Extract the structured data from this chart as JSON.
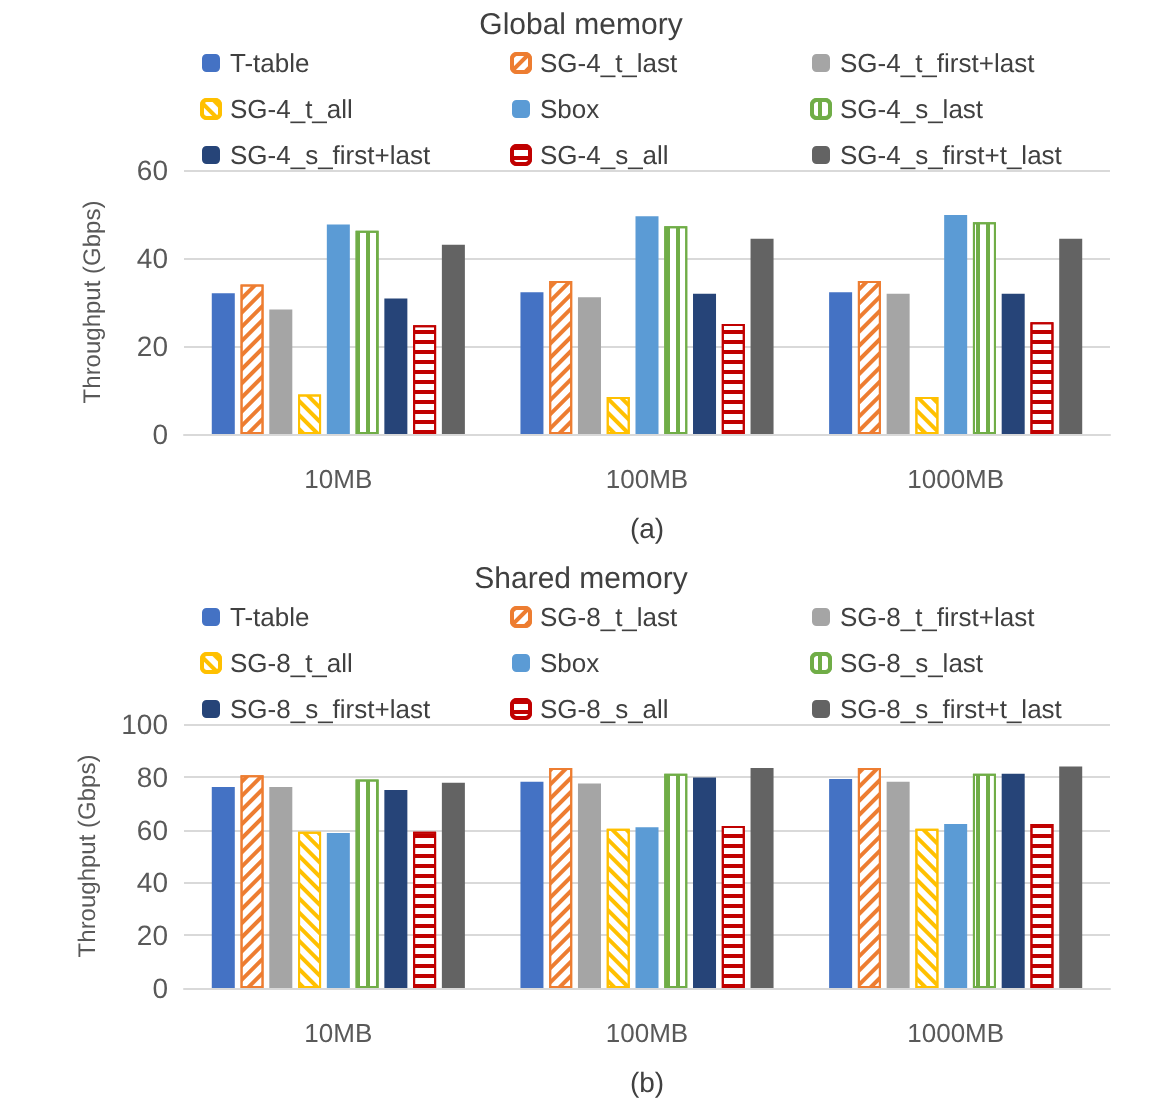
{
  "chart_data": [
    {
      "type": "bar",
      "title": "Global memory",
      "xlabel": "(a)",
      "ylabel": "Throughput (Gbps)",
      "categories": [
        "10MB",
        "100MB",
        "1000MB"
      ],
      "ylim": [
        0,
        60
      ],
      "yticks": [
        0,
        20,
        40,
        60
      ],
      "grid": "y",
      "legend": "top",
      "series": [
        {
          "name": "T-table",
          "color": "#4472c4",
          "values": [
            32,
            32.2,
            32.2
          ]
        },
        {
          "name": "SG-4_t_last",
          "color": "#ed7d31",
          "values": [
            34,
            34.8,
            34.8
          ]
        },
        {
          "name": "SG-4_t_first+last",
          "color": "#a5a5a5",
          "values": [
            28.3,
            31.1,
            31.9
          ]
        },
        {
          "name": "SG-4_t_all",
          "color": "#ffc000",
          "values": [
            9,
            8.4,
            8.4
          ]
        },
        {
          "name": "Sbox",
          "color": "#5b9bd5",
          "values": [
            47.6,
            49.5,
            49.8
          ]
        },
        {
          "name": "SG-4_s_last",
          "color": "#70ad47",
          "values": [
            46.2,
            47.2,
            48.1
          ]
        },
        {
          "name": "SG-4_s_first+last",
          "color": "#264478",
          "values": [
            30.8,
            31.9,
            31.9
          ]
        },
        {
          "name": "SG-4_s_all",
          "color": "#c00000",
          "values": [
            24.7,
            25,
            25.4
          ]
        },
        {
          "name": "SG-4_s_first+t_last",
          "color": "#636363",
          "values": [
            43,
            44.4,
            44.4
          ]
        }
      ]
    },
    {
      "type": "bar",
      "title": "Shared memory",
      "xlabel": "(b)",
      "ylabel": "Throughput (Gbps)",
      "categories": [
        "10MB",
        "100MB",
        "1000MB"
      ],
      "ylim": [
        0,
        100
      ],
      "yticks": [
        0,
        20,
        40,
        60,
        80,
        100
      ],
      "grid": "y",
      "legend": "top",
      "series": [
        {
          "name": "T-table",
          "color": "#4472c4",
          "values": [
            76.1,
            78.1,
            79.2
          ]
        },
        {
          "name": "SG-8_t_last",
          "color": "#ed7d31",
          "values": [
            80.6,
            83.3,
            83.3
          ]
        },
        {
          "name": "SG-8_t_first+last",
          "color": "#a5a5a5",
          "values": [
            76.1,
            77.5,
            78.1
          ]
        },
        {
          "name": "SG-8_t_all",
          "color": "#ffc000",
          "values": [
            59.2,
            60.3,
            60.3
          ]
        },
        {
          "name": "Sbox",
          "color": "#5b9bd5",
          "values": [
            58.7,
            60.9,
            62.1
          ]
        },
        {
          "name": "SG-8_s_last",
          "color": "#70ad47",
          "values": [
            79,
            81.2,
            81.2
          ]
        },
        {
          "name": "SG-8_s_first+last",
          "color": "#264478",
          "values": [
            75,
            79.7,
            81.2
          ]
        },
        {
          "name": "SG-8_s_all",
          "color": "#c00000",
          "values": [
            59.2,
            61.4,
            62.1
          ]
        },
        {
          "name": "SG-8_s_first+t_last",
          "color": "#636363",
          "values": [
            77.7,
            83.3,
            83.9
          ]
        }
      ]
    }
  ]
}
